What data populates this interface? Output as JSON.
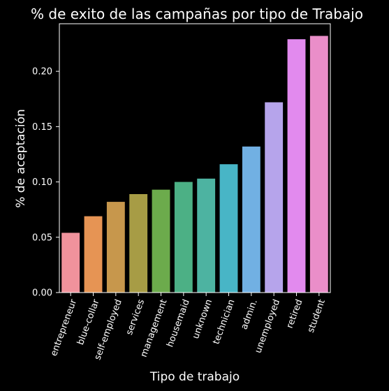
{
  "chart_data": {
    "type": "bar",
    "title": "% de exito de las campañas por tipo de Trabajo",
    "xlabel": "Tipo de trabajo",
    "ylabel": "% de aceptación",
    "categories": [
      "entrepreneur",
      "blue-collar",
      "self-employed",
      "services",
      "management",
      "housemaid",
      "unknown",
      "technician",
      "admin.",
      "unemployed",
      "retired",
      "student"
    ],
    "values": [
      0.054,
      0.069,
      0.082,
      0.089,
      0.093,
      0.1,
      0.103,
      0.116,
      0.132,
      0.172,
      0.229,
      0.232
    ],
    "colors": [
      "#f0929c",
      "#e69454",
      "#c7974c",
      "#a79c45",
      "#6cab4c",
      "#4cb085",
      "#4db3a1",
      "#48b5c6",
      "#71b0e3",
      "#b6a4eb",
      "#e28aee",
      "#ea8ec9"
    ],
    "yticks": [
      "0.00",
      "0.05",
      "0.10",
      "0.15",
      "0.20"
    ],
    "ylim": [
      0,
      0.243
    ],
    "grid": false,
    "background": "#000000",
    "foreground": "#ffffff"
  }
}
